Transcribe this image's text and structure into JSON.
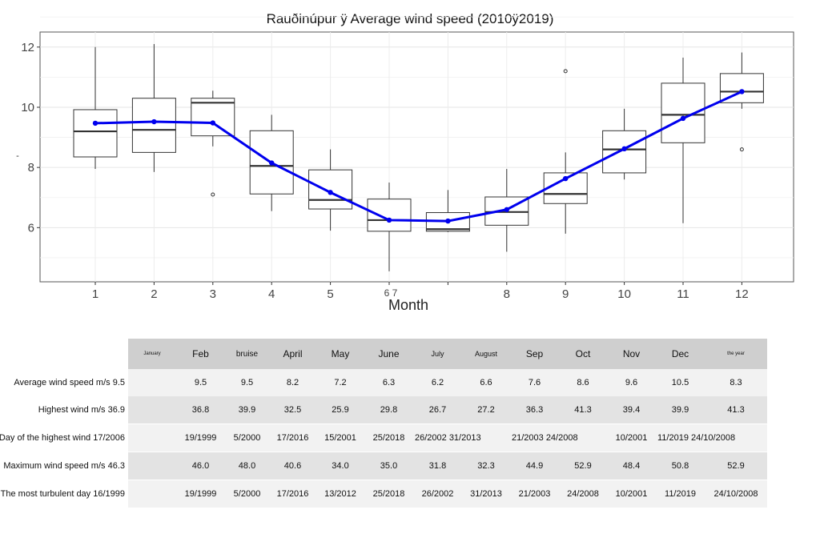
{
  "chart_data": {
    "type": "box",
    "title": "Rauðinúpur ÿ Average wind speed (2010ÿ2019)",
    "xlabel": "Month",
    "ylabel": "-",
    "ylim": [
      4.2,
      12.5
    ],
    "yticks": [
      6,
      8,
      10,
      12
    ],
    "xtick_labels": [
      "1",
      "2",
      "3",
      "4",
      "5",
      "6 7",
      "",
      "8",
      "9",
      "10",
      "11",
      "12"
    ],
    "grid": true,
    "boxes": [
      {
        "month": 1,
        "whisker_low": 7.95,
        "q1": 8.35,
        "median": 9.2,
        "q3": 9.92,
        "whisker_high": 12.0,
        "outliers": []
      },
      {
        "month": 2,
        "whisker_low": 7.85,
        "q1": 8.5,
        "median": 9.25,
        "q3": 10.3,
        "whisker_high": 12.1,
        "outliers": []
      },
      {
        "month": 3,
        "whisker_low": 8.7,
        "q1": 9.05,
        "median": 10.15,
        "q3": 10.3,
        "whisker_high": 10.55,
        "outliers": [
          7.1
        ]
      },
      {
        "month": 4,
        "whisker_low": 6.55,
        "q1": 7.12,
        "median": 8.05,
        "q3": 9.22,
        "whisker_high": 9.75,
        "outliers": []
      },
      {
        "month": 5,
        "whisker_low": 5.9,
        "q1": 6.62,
        "median": 6.92,
        "q3": 7.92,
        "whisker_high": 8.6,
        "outliers": []
      },
      {
        "month": 6,
        "whisker_low": 4.55,
        "q1": 5.88,
        "median": 6.25,
        "q3": 6.95,
        "whisker_high": 7.5,
        "outliers": []
      },
      {
        "month": 7,
        "whisker_low": 5.85,
        "q1": 5.88,
        "median": 5.95,
        "q3": 6.5,
        "whisker_high": 7.25,
        "outliers": []
      },
      {
        "month": 8,
        "whisker_low": 5.2,
        "q1": 6.08,
        "median": 6.52,
        "q3": 7.02,
        "whisker_high": 7.95,
        "outliers": []
      },
      {
        "month": 9,
        "whisker_low": 5.8,
        "q1": 6.8,
        "median": 7.12,
        "q3": 7.82,
        "whisker_high": 8.5,
        "outliers": [
          11.2
        ]
      },
      {
        "month": 10,
        "whisker_low": 7.6,
        "q1": 7.82,
        "median": 8.6,
        "q3": 9.22,
        "whisker_high": 9.95,
        "outliers": []
      },
      {
        "month": 11,
        "whisker_low": 6.15,
        "q1": 8.82,
        "median": 9.75,
        "q3": 10.8,
        "whisker_high": 11.65,
        "outliers": []
      },
      {
        "month": 12,
        "whisker_low": 9.95,
        "q1": 10.15,
        "median": 10.52,
        "q3": 11.12,
        "whisker_high": 11.82,
        "outliers": [
          8.6
        ]
      }
    ],
    "mean_series": {
      "color": "#0000ee",
      "values": [
        9.47,
        9.52,
        9.48,
        8.15,
        7.17,
        6.25,
        6.22,
        6.6,
        7.63,
        8.62,
        9.63,
        10.52
      ]
    }
  },
  "table": {
    "headers": [
      "January",
      "Feb",
      "bruise",
      "April",
      "May",
      "June",
      "July",
      "August",
      "Sep",
      "Oct",
      "Nov",
      "Dec",
      "the year"
    ],
    "rows": [
      {
        "label": "Average wind speed m/s 9.5",
        "cells": [
          "",
          "9.5",
          "9.5",
          "8.2",
          "7.2",
          "6.3",
          "6.2",
          "6.6",
          "7.6",
          "8.6",
          "9.6",
          "10.5",
          "8.3"
        ]
      },
      {
        "label": "Highest wind m/s 36.9",
        "cells": [
          "",
          "36.8",
          "39.9",
          "32.5",
          "25.9",
          "29.8",
          "26.7",
          "27.2",
          "36.3",
          "41.3",
          "39.4",
          "39.9",
          "41.3"
        ]
      },
      {
        "label": "Day of the highest wind 17/2006",
        "cells": [
          "",
          "19/1999",
          "5/2000",
          "17/2016",
          "15/2001",
          "25/2018",
          "26/2002 31/2013",
          "",
          "21/2003 24/2008",
          "",
          "10/2001",
          "11/2019 24/10/2008",
          ""
        ]
      },
      {
        "label": "Maximum wind speed m/s 46.3",
        "cells": [
          "",
          "46.0",
          "48.0",
          "40.6",
          "34.0",
          "35.0",
          "31.8",
          "32.3",
          "44.9",
          "52.9",
          "48.4",
          "50.8",
          "52.9"
        ]
      },
      {
        "label": "The most turbulent day 16/1999",
        "cells": [
          "",
          "19/1999",
          "5/2000",
          "17/2016",
          "13/2012",
          "25/2018",
          "26/2002",
          "31/2013",
          "21/2003",
          "24/2008",
          "10/2001",
          "11/2019",
          "24/10/2008"
        ]
      }
    ]
  }
}
